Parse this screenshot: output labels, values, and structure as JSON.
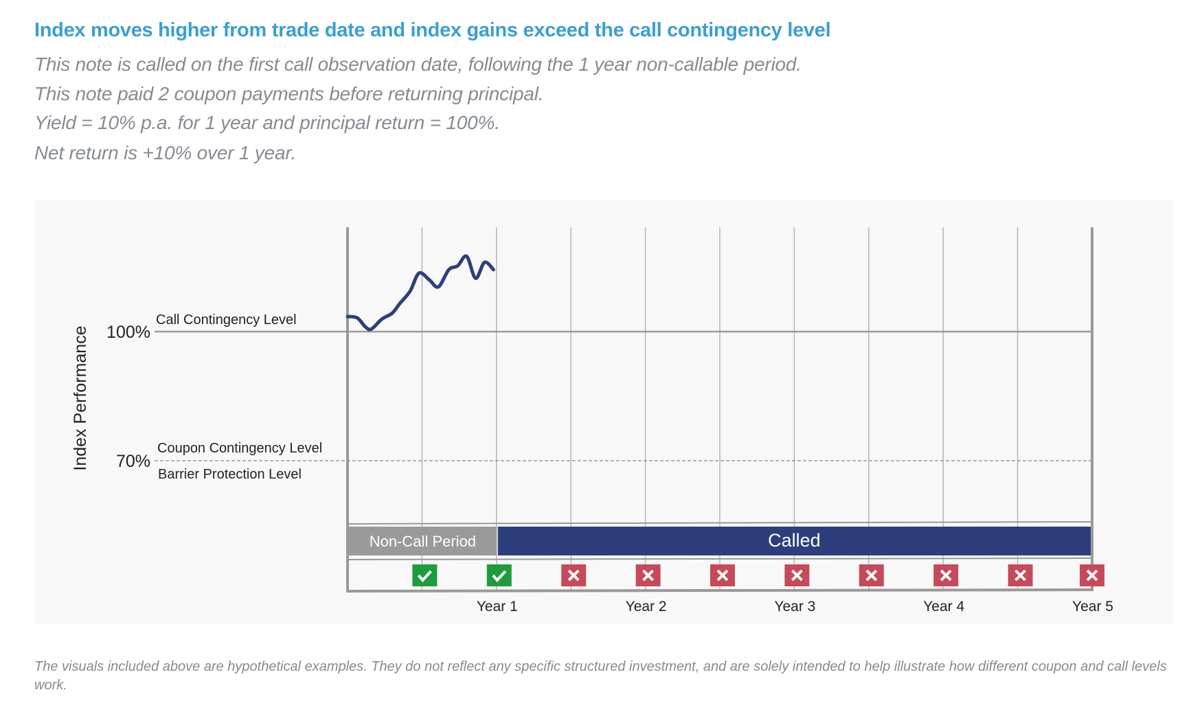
{
  "header": {
    "title": "Index moves higher from trade date and index gains exceed the call contingency level",
    "lines": [
      "This note is called on the first call observation date, following the 1 year non-callable period.",
      "This note paid 2 coupon payments before returning principal.",
      "Yield = 10% p.a. for 1 year and principal return = 100%.",
      "Net return is +10% over 1 year."
    ]
  },
  "footnote": "The visuals included above are hypothetical examples. They do not reflect any specific structured investment, and are solely intended to help illustrate how different coupon and call levels work.",
  "chart_data": {
    "type": "line",
    "ylabel": "Index Performance",
    "xlim": [
      0,
      5
    ],
    "x_ticks": [
      {
        "value": 1,
        "label": "Year 1"
      },
      {
        "value": 2,
        "label": "Year 2"
      },
      {
        "value": 3,
        "label": "Year 3"
      },
      {
        "value": 4,
        "label": "Year 4"
      },
      {
        "value": 5,
        "label": "Year 5"
      }
    ],
    "observation_dates": [
      0.5,
      1,
      1.5,
      2,
      2.5,
      3,
      3.5,
      4,
      4.5,
      5
    ],
    "levels": [
      {
        "value": 100,
        "tick": "100%",
        "labels": [
          "Call Contingency Level"
        ],
        "style": "solid"
      },
      {
        "value": 70,
        "tick": "70%",
        "labels": [
          "Coupon Contingency Level",
          "Barrier Protection Level"
        ],
        "style": "dashed"
      }
    ],
    "series": [
      {
        "color": "#2c3f7c",
        "points": [
          [
            0,
            103.5
          ],
          [
            0.065,
            103.2
          ],
          [
            0.12,
            101.1
          ],
          [
            0.16,
            100.6
          ],
          [
            0.23,
            102.9
          ],
          [
            0.3,
            104.3
          ],
          [
            0.35,
            106.5
          ],
          [
            0.42,
            109.4
          ],
          [
            0.48,
            113.6
          ],
          [
            0.55,
            112.0
          ],
          [
            0.61,
            110.4
          ],
          [
            0.68,
            114.4
          ],
          [
            0.74,
            115.3
          ],
          [
            0.8,
            117.5
          ],
          [
            0.86,
            112.4
          ],
          [
            0.92,
            116.1
          ],
          [
            0.98,
            114.4
          ]
        ]
      }
    ],
    "periods": [
      {
        "label": "Non-Call Period",
        "start": 0,
        "end": 1,
        "color": "#9a9a9a"
      },
      {
        "label": "Called",
        "start": 1,
        "end": 5,
        "color": "#2c3f7c"
      }
    ],
    "observations": [
      "check",
      "check",
      "x",
      "x",
      "x",
      "x",
      "x",
      "x",
      "x",
      "x"
    ],
    "colors": {
      "check": "#1f9c3c",
      "x": "#c64a5a",
      "grid": "#b5b5b5",
      "axis": "#999999"
    }
  }
}
